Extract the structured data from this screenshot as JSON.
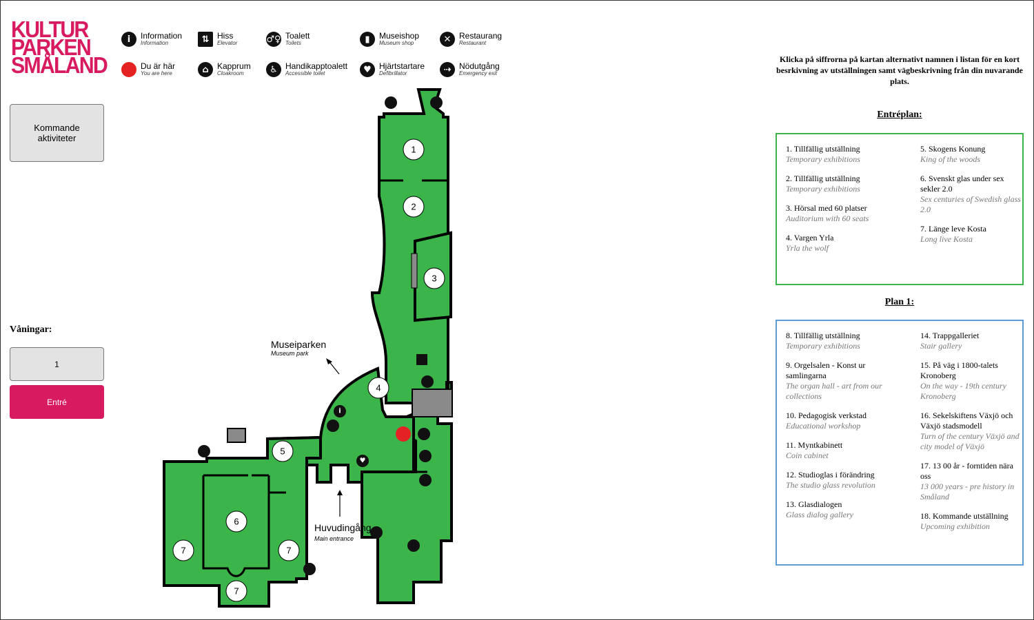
{
  "logo": {
    "lines": [
      "KULTUR",
      "PARKEN",
      "SMÅLAND"
    ]
  },
  "legend": [
    {
      "icon": "information-icon",
      "glyph": "i",
      "label": "Information",
      "sub": "Information"
    },
    {
      "icon": "elevator-icon",
      "glyph": "⇅",
      "label": "Hiss",
      "sub": "Elevator"
    },
    {
      "icon": "toilet-icon",
      "glyph": "♂♀",
      "label": "Toalett",
      "sub": "Toilets"
    },
    {
      "icon": "museum-shop-icon",
      "glyph": "▮",
      "label": "Museishop",
      "sub": "Museum shop"
    },
    {
      "icon": "restaurant-icon",
      "glyph": "✕",
      "label": "Restaurang",
      "sub": "Restaurant"
    },
    {
      "icon": "you-are-here-icon",
      "glyph": "",
      "label": "Du är här",
      "sub": "You are here"
    },
    {
      "icon": "cloakroom-icon",
      "glyph": "⌂",
      "label": "Kapprum",
      "sub": "Cloakroom"
    },
    {
      "icon": "accessible-toilet-icon",
      "glyph": "♿",
      "label": "Handikapptoalett",
      "sub": "Accessible toilet"
    },
    {
      "icon": "defibrillator-icon",
      "glyph": "♥",
      "label": "Hjärtstartare",
      "sub": "Defibrillator"
    },
    {
      "icon": "emergency-exit-icon",
      "glyph": "⇢",
      "label": "Nödutgång",
      "sub": "Emergency exit"
    }
  ],
  "left_panel": {
    "upcoming_button": "Kommande aktiviteter",
    "floors_label": "Våningar:",
    "floor_1": "1",
    "entrance_button": "Entré"
  },
  "map": {
    "museum_park": "Museiparken",
    "museum_park_sub": "Museum park",
    "main_entrance": "Huvudingång",
    "main_entrance_sub": "Main entrance",
    "room_numbers": [
      "1",
      "2",
      "3",
      "4",
      "5",
      "6",
      "7",
      "7",
      "7"
    ],
    "colors": {
      "floor": "#3bb54a",
      "wall": "#000000",
      "you_are_here": "#e52222",
      "stairs": "#8a8a8a"
    }
  },
  "instructions": "Klicka på siffrorna på kartan alternativt namnen i listan för en kort besrkivning av utställningen samt vägbeskrivning från din nuvarande plats.",
  "entreplan": {
    "title": "Entréplan:",
    "left": [
      {
        "sv": "1. Tillfällig utställning",
        "en": "Temporary exhibitions"
      },
      {
        "sv": "2. Tillfällig utställning",
        "en": "Temporary exhibitions"
      },
      {
        "sv": "3. Hörsal med 60 platser",
        "en": "Auditorium with 60 seats"
      },
      {
        "sv": "4. Vargen Yrla",
        "en": "Yrla the wolf"
      }
    ],
    "right": [
      {
        "sv": "5. Skogens Konung",
        "en": "King of the woods"
      },
      {
        "sv": "6. Svenskt glas under sex sekler 2.0",
        "en": "Sex centuries of Swedish glass 2.0"
      },
      {
        "sv": "7. Länge leve Kosta",
        "en": "Long live Kosta"
      }
    ]
  },
  "plan1": {
    "title": "Plan 1:",
    "left": [
      {
        "sv": "8. Tillfällig utställning",
        "en": "Temporary exhibitions"
      },
      {
        "sv": "9. Orgelsalen - Konst ur samlingarna",
        "en": "The organ hall - art from our collections"
      },
      {
        "sv": "10. Pedagogisk verkstad",
        "en": "Educational workshop"
      },
      {
        "sv": "11. Myntkabinett",
        "en": "Coin cabinet"
      },
      {
        "sv": "12. Studioglas i förändring",
        "en": "The studio glass revolution"
      },
      {
        "sv": "13. Glasdialogen",
        "en": "Glass dialog gallery"
      }
    ],
    "right": [
      {
        "sv": "14. Trappgalleriet",
        "en": "Stair gallery"
      },
      {
        "sv": "15. På väg i 1800-talets Kronoberg",
        "en": "On the way - 19th century Kronoberg"
      },
      {
        "sv": "16. Sekelskiftens Växjö och Växjö stadsmodell",
        "en": "Turn of the century Växjö and city model of Växjö"
      },
      {
        "sv": "17. 13 00 år - forntiden nära oss",
        "en": "13 000 years - pre history in Småland"
      },
      {
        "sv": "18. Kommande utställning",
        "en": "Upcoming exhibition"
      }
    ]
  }
}
